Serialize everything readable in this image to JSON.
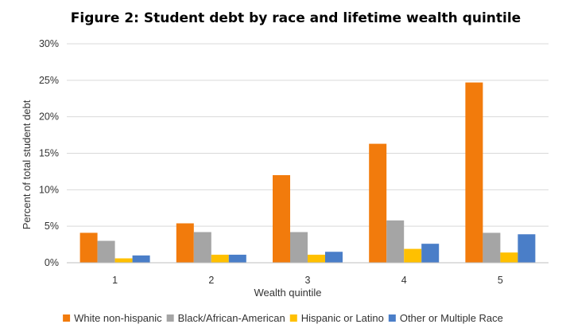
{
  "chart_data": {
    "type": "bar",
    "title": "Figure 2: Student debt by race and lifetime wealth quintile",
    "xlabel": "Wealth quintile",
    "ylabel": "Percent of total student debt",
    "categories": [
      "1",
      "2",
      "3",
      "4",
      "5"
    ],
    "ylim": [
      0,
      30
    ],
    "yticks": [
      "0%",
      "5%",
      "10%",
      "15%",
      "20%",
      "25%",
      "30%"
    ],
    "grid": true,
    "legend_position": "bottom",
    "series": [
      {
        "name": "White non-hispanic",
        "color": "#f27b0c",
        "values": [
          4.1,
          5.4,
          12.0,
          16.3,
          24.7
        ]
      },
      {
        "name": "Black/African-American",
        "color": "#a5a5a5",
        "values": [
          3.0,
          4.2,
          4.2,
          5.8,
          4.1
        ]
      },
      {
        "name": "Hispanic or Latino",
        "color": "#ffc000",
        "values": [
          0.6,
          1.1,
          1.1,
          1.9,
          1.4
        ]
      },
      {
        "name": "Other or Multiple Race",
        "color": "#4a7ec8",
        "values": [
          1.0,
          1.1,
          1.5,
          2.6,
          3.9
        ]
      }
    ]
  }
}
